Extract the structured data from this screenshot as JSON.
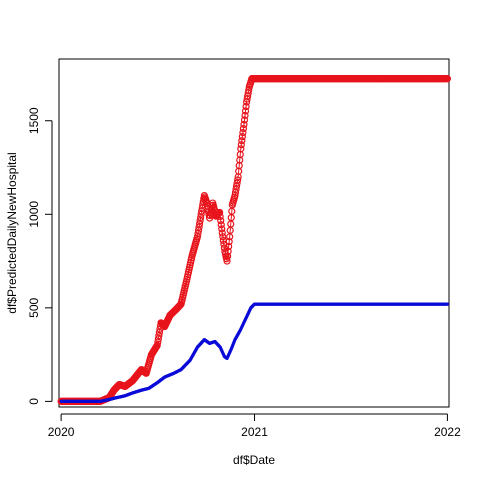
{
  "chart_data": {
    "type": "line",
    "title": "",
    "xlabel": "df$Date",
    "ylabel": "df$PredictedDailyNewHospital",
    "x_type": "date",
    "xlim": [
      "2019-12-28",
      "2022-01-04"
    ],
    "ylim": [
      -30,
      1830
    ],
    "x_ticks": [
      {
        "date": "2020-01-01",
        "label": "2020"
      },
      {
        "date": "2021-01-01",
        "label": "2021"
      },
      {
        "date": "2022-01-01",
        "label": "2022"
      }
    ],
    "y_ticks": [
      0,
      500,
      1000,
      1500
    ],
    "grid": false,
    "legend": "none",
    "series": [
      {
        "color": "#e8141c",
        "marker": "open-circle",
        "line": true,
        "points": [
          [
            "2020-01-01",
            0
          ],
          [
            "2020-02-01",
            0
          ],
          [
            "2020-03-01",
            0
          ],
          [
            "2020-03-15",
            0
          ],
          [
            "2020-04-01",
            20
          ],
          [
            "2020-04-10",
            60
          ],
          [
            "2020-04-20",
            90
          ],
          [
            "2020-05-01",
            80
          ],
          [
            "2020-05-15",
            110
          ],
          [
            "2020-06-01",
            170
          ],
          [
            "2020-06-10",
            150
          ],
          [
            "2020-06-20",
            250
          ],
          [
            "2020-07-01",
            300
          ],
          [
            "2020-07-08",
            420
          ],
          [
            "2020-07-15",
            400
          ],
          [
            "2020-07-25",
            460
          ],
          [
            "2020-08-05",
            490
          ],
          [
            "2020-08-15",
            520
          ],
          [
            "2020-08-25",
            640
          ],
          [
            "2020-09-05",
            780
          ],
          [
            "2020-09-15",
            880
          ],
          [
            "2020-09-22",
            1000
          ],
          [
            "2020-09-28",
            1100
          ],
          [
            "2020-10-03",
            1060
          ],
          [
            "2020-10-08",
            980
          ],
          [
            "2020-10-14",
            1060
          ],
          [
            "2020-10-20",
            990
          ],
          [
            "2020-10-27",
            1010
          ],
          [
            "2020-11-01",
            900
          ],
          [
            "2020-11-06",
            800
          ],
          [
            "2020-11-10",
            750
          ],
          [
            "2020-11-15",
            880
          ],
          [
            "2020-11-20",
            1050
          ],
          [
            "2020-11-25",
            1100
          ],
          [
            "2020-12-01",
            1200
          ],
          [
            "2020-12-06",
            1350
          ],
          [
            "2020-12-12",
            1480
          ],
          [
            "2020-12-17",
            1600
          ],
          [
            "2020-12-22",
            1680
          ],
          [
            "2020-12-27",
            1725
          ],
          [
            "2021-01-01",
            1725
          ],
          [
            "2021-04-01",
            1725
          ],
          [
            "2021-07-01",
            1725
          ],
          [
            "2021-10-01",
            1725
          ],
          [
            "2022-01-01",
            1725
          ]
        ]
      },
      {
        "color": "#0a0ad8",
        "marker": "filled-dot",
        "line": false,
        "points": [
          [
            "2020-01-01",
            0
          ],
          [
            "2020-02-01",
            0
          ],
          [
            "2020-03-01",
            0
          ],
          [
            "2020-03-15",
            0
          ],
          [
            "2020-04-01",
            10
          ],
          [
            "2020-04-15",
            20
          ],
          [
            "2020-05-01",
            30
          ],
          [
            "2020-05-15",
            45
          ],
          [
            "2020-06-01",
            60
          ],
          [
            "2020-06-15",
            70
          ],
          [
            "2020-07-01",
            100
          ],
          [
            "2020-07-15",
            130
          ],
          [
            "2020-08-01",
            150
          ],
          [
            "2020-08-15",
            170
          ],
          [
            "2020-09-01",
            220
          ],
          [
            "2020-09-15",
            290
          ],
          [
            "2020-09-28",
            330
          ],
          [
            "2020-10-08",
            310
          ],
          [
            "2020-10-18",
            320
          ],
          [
            "2020-10-28",
            290
          ],
          [
            "2020-11-05",
            240
          ],
          [
            "2020-11-10",
            230
          ],
          [
            "2020-11-18",
            280
          ],
          [
            "2020-11-25",
            330
          ],
          [
            "2020-12-05",
            380
          ],
          [
            "2020-12-15",
            440
          ],
          [
            "2020-12-25",
            500
          ],
          [
            "2021-01-01",
            520
          ],
          [
            "2021-04-01",
            520
          ],
          [
            "2021-07-01",
            520
          ],
          [
            "2021-10-01",
            520
          ],
          [
            "2022-01-01",
            520
          ]
        ]
      }
    ]
  }
}
